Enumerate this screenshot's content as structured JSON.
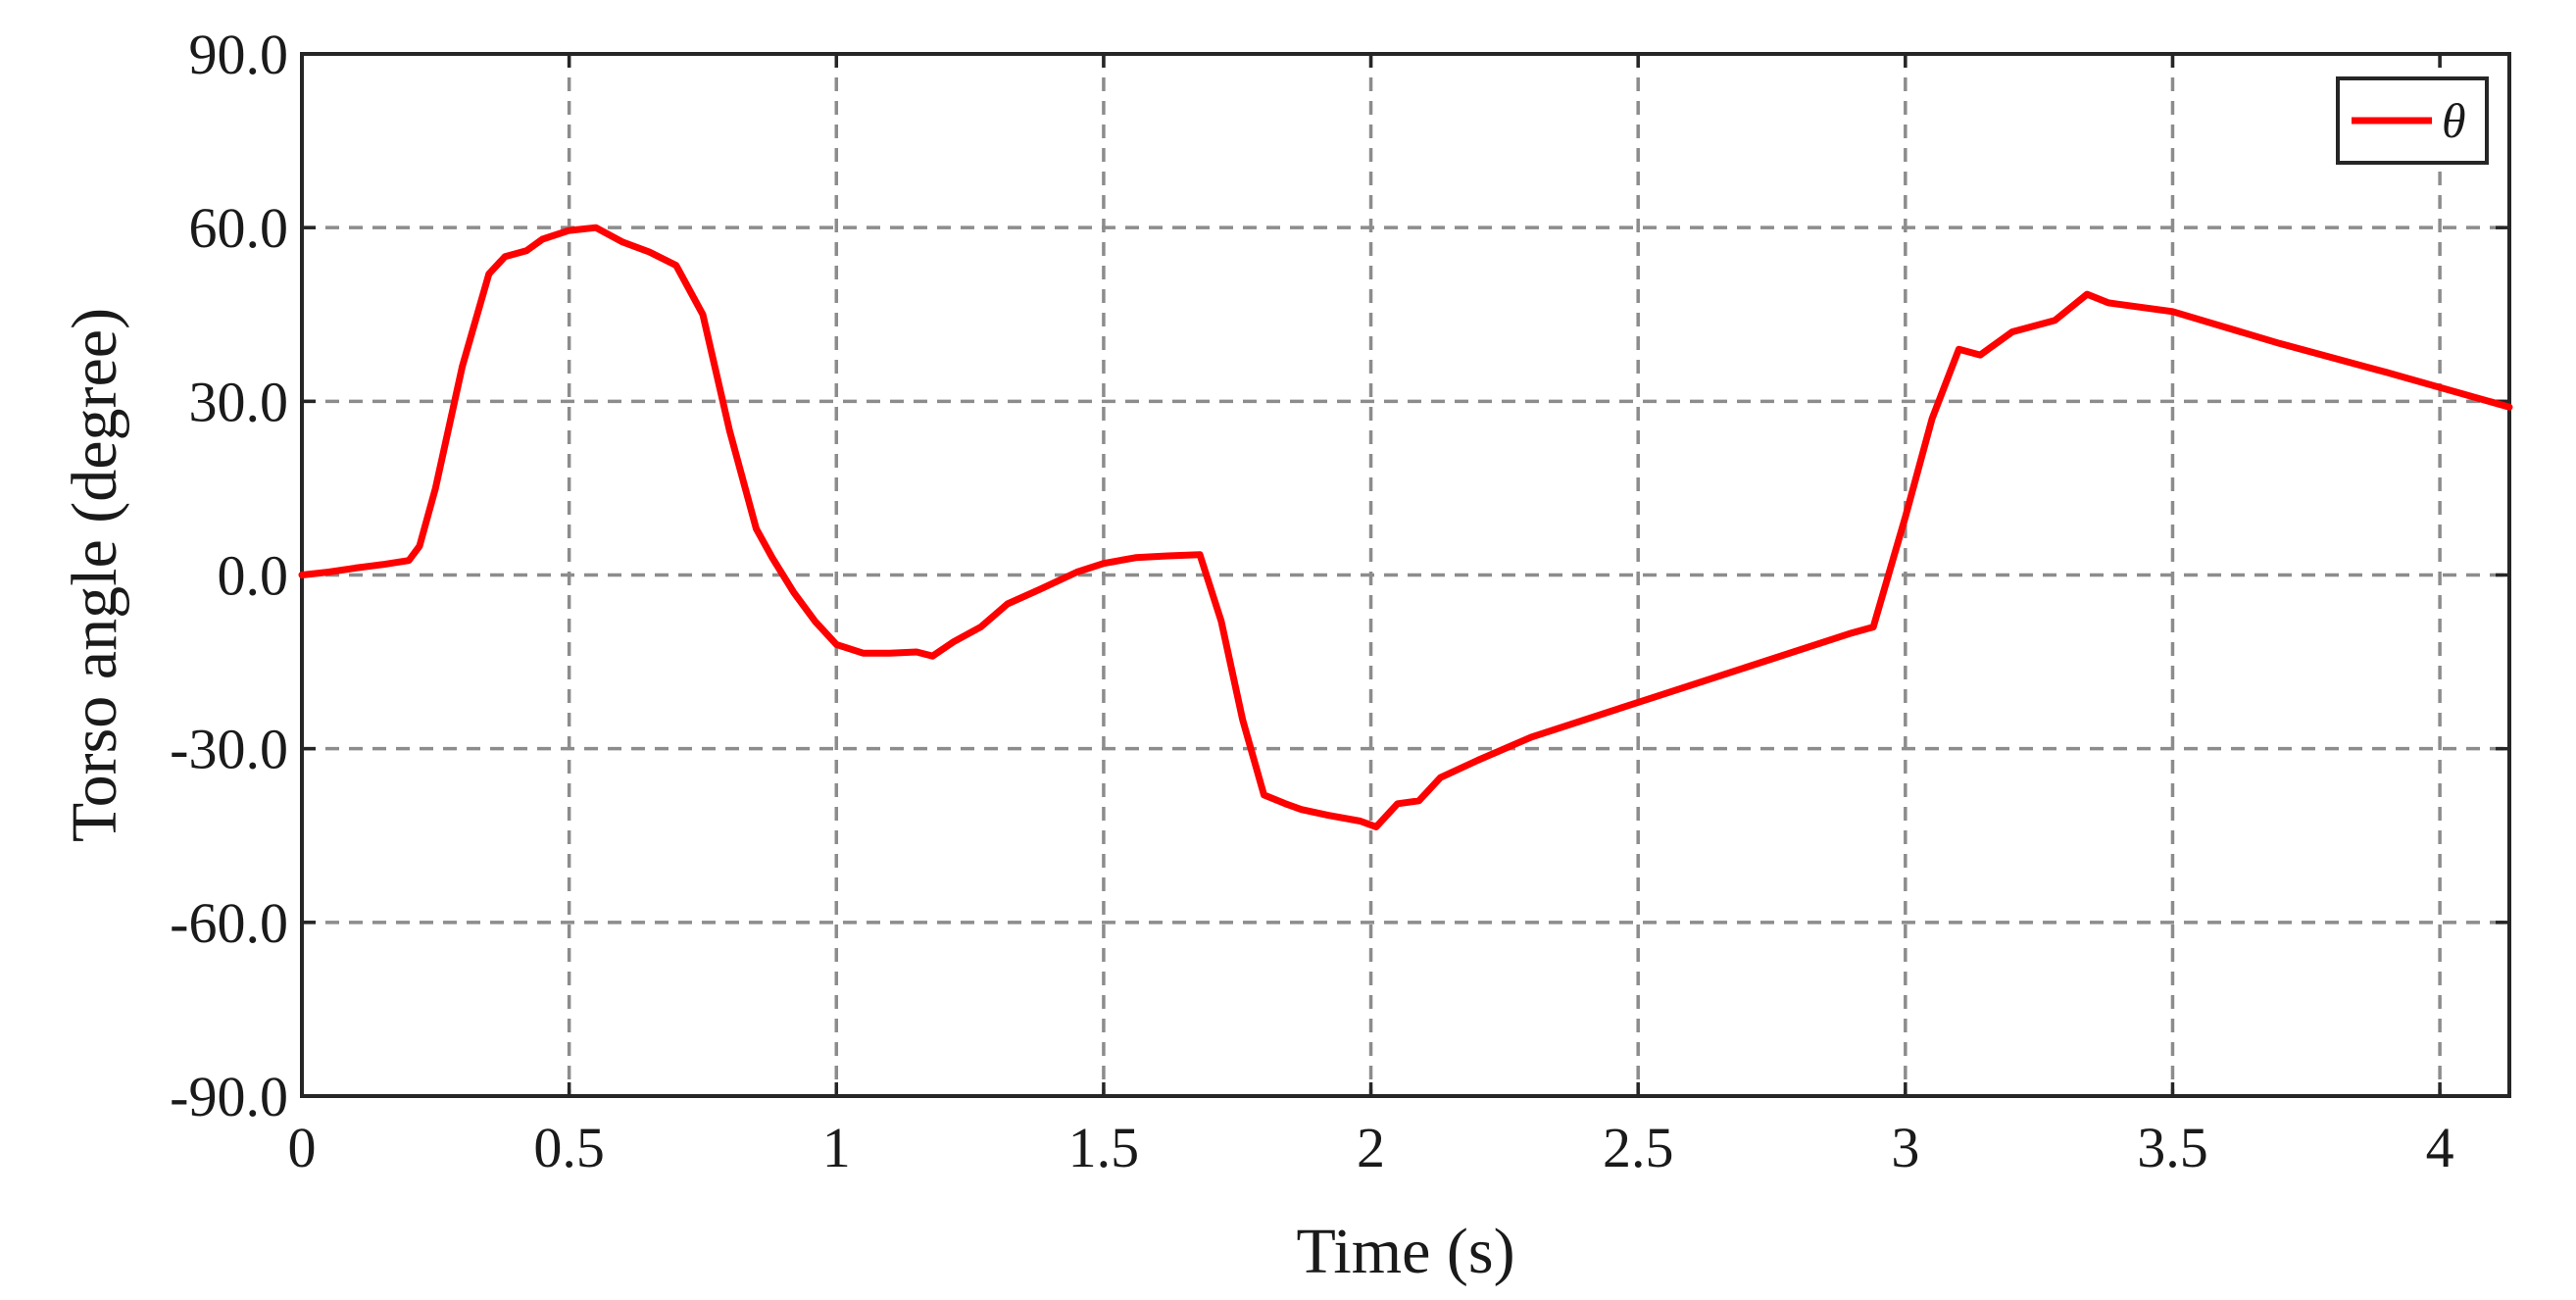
{
  "chart_data": {
    "type": "line",
    "title": "",
    "xlabel": "Time (s)",
    "ylabel": "Torso angle (degree)",
    "xlim": [
      0,
      4.13
    ],
    "ylim": [
      -90,
      90
    ],
    "x_ticks": [
      0,
      0.5,
      1,
      1.5,
      2,
      2.5,
      3,
      3.5,
      4
    ],
    "x_tick_labels": [
      "0",
      "0.5",
      "1",
      "1.5",
      "2",
      "2.5",
      "3",
      "3.5",
      "4"
    ],
    "y_ticks": [
      90,
      60,
      30,
      0,
      -30,
      -60,
      -90
    ],
    "y_tick_labels": [
      "90.0",
      "60.0",
      "30.0",
      "0.0",
      "-30.0",
      "-60.0",
      "-90.0"
    ],
    "grid": true,
    "grid_style": "dashed",
    "legend_position": "top-right",
    "series": [
      {
        "name": "θ",
        "color": "#ff0000",
        "x": [
          0,
          0.05,
          0.1,
          0.15,
          0.2,
          0.22,
          0.25,
          0.3,
          0.35,
          0.38,
          0.42,
          0.45,
          0.5,
          0.55,
          0.6,
          0.65,
          0.7,
          0.75,
          0.8,
          0.85,
          0.88,
          0.92,
          0.96,
          1.0,
          1.05,
          1.1,
          1.15,
          1.18,
          1.22,
          1.27,
          1.32,
          1.38,
          1.45,
          1.5,
          1.56,
          1.62,
          1.68,
          1.72,
          1.76,
          1.8,
          1.84,
          1.87,
          1.92,
          1.98,
          2.01,
          2.05,
          2.09,
          2.13,
          2.2,
          2.3,
          2.5,
          2.7,
          2.9,
          2.94,
          3.0,
          3.05,
          3.1,
          3.14,
          3.2,
          3.28,
          3.34,
          3.38,
          3.5,
          3.7,
          3.9,
          4.13
        ],
        "y": [
          0,
          0.5,
          1.2,
          1.8,
          2.5,
          5,
          15,
          36,
          52,
          55,
          56,
          58,
          59.5,
          60,
          57.5,
          55.8,
          53.5,
          45,
          25,
          8,
          3,
          -3,
          -8,
          -12,
          -13.5,
          -13.5,
          -13.3,
          -14,
          -11.5,
          -9,
          -5,
          -2.5,
          0.5,
          2,
          3,
          3.3,
          3.5,
          -8,
          -25,
          -38,
          -39.5,
          -40.5,
          -41.5,
          -42.5,
          -43.5,
          -39.5,
          -39,
          -35,
          -32,
          -28,
          -22,
          -16,
          -10,
          -9,
          10,
          27,
          39,
          38,
          42,
          44,
          48.5,
          47,
          45.5,
          40,
          35,
          29
        ]
      }
    ]
  }
}
